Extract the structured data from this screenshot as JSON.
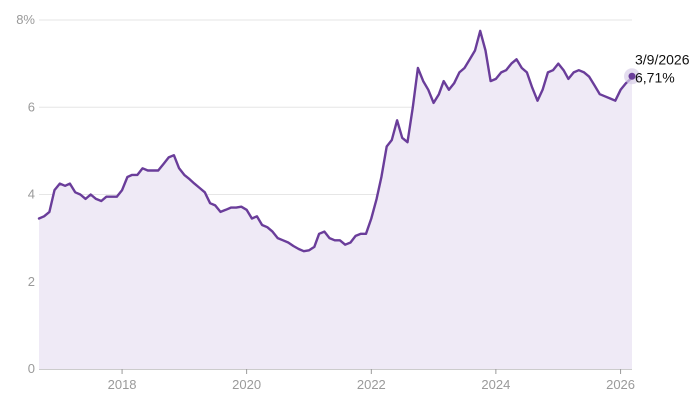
{
  "chart_data": {
    "type": "area",
    "title": "",
    "xlabel": "",
    "ylabel": "",
    "x_range": [
      "2016-09-01",
      "2026-03-09"
    ],
    "y_range": [
      0,
      8
    ],
    "y_ticks": [
      0,
      2,
      4,
      6,
      8
    ],
    "y_tick_labels": [
      "0",
      "2",
      "4",
      "6",
      "8%"
    ],
    "x_ticks": [
      2018,
      2020,
      2022,
      2024,
      2026
    ],
    "x_tick_labels": [
      "2018",
      "2020",
      "2022",
      "2024",
      "2026"
    ],
    "grid": "horizontal",
    "colors": {
      "line": "#6a3d9a",
      "fill": "#efeaf6",
      "grid": "#e6e6e6",
      "axis": "#9a9a9a",
      "halo": "#d9cfe8"
    },
    "series": [
      {
        "points": [
          [
            "2016-09-01",
            3.45
          ],
          [
            "2016-10-01",
            3.5
          ],
          [
            "2016-11-01",
            3.6
          ],
          [
            "2016-12-01",
            4.1
          ],
          [
            "2017-01-01",
            4.25
          ],
          [
            "2017-02-01",
            4.2
          ],
          [
            "2017-03-01",
            4.25
          ],
          [
            "2017-04-01",
            4.05
          ],
          [
            "2017-05-01",
            4.0
          ],
          [
            "2017-06-01",
            3.9
          ],
          [
            "2017-07-01",
            4.0
          ],
          [
            "2017-08-01",
            3.9
          ],
          [
            "2017-09-01",
            3.85
          ],
          [
            "2017-10-01",
            3.95
          ],
          [
            "2017-11-01",
            3.95
          ],
          [
            "2017-12-01",
            3.95
          ],
          [
            "2018-01-01",
            4.1
          ],
          [
            "2018-02-01",
            4.4
          ],
          [
            "2018-03-01",
            4.45
          ],
          [
            "2018-04-01",
            4.45
          ],
          [
            "2018-05-01",
            4.6
          ],
          [
            "2018-06-01",
            4.55
          ],
          [
            "2018-07-01",
            4.55
          ],
          [
            "2018-08-01",
            4.55
          ],
          [
            "2018-09-01",
            4.7
          ],
          [
            "2018-10-01",
            4.85
          ],
          [
            "2018-11-01",
            4.9
          ],
          [
            "2018-12-01",
            4.6
          ],
          [
            "2019-01-01",
            4.45
          ],
          [
            "2019-02-01",
            4.35
          ],
          [
            "2019-03-01",
            4.25
          ],
          [
            "2019-04-01",
            4.15
          ],
          [
            "2019-05-01",
            4.05
          ],
          [
            "2019-06-01",
            3.8
          ],
          [
            "2019-07-01",
            3.75
          ],
          [
            "2019-08-01",
            3.6
          ],
          [
            "2019-09-01",
            3.65
          ],
          [
            "2019-10-01",
            3.7
          ],
          [
            "2019-11-01",
            3.7
          ],
          [
            "2019-12-01",
            3.72
          ],
          [
            "2020-01-01",
            3.65
          ],
          [
            "2020-02-01",
            3.45
          ],
          [
            "2020-03-01",
            3.5
          ],
          [
            "2020-04-01",
            3.3
          ],
          [
            "2020-05-01",
            3.25
          ],
          [
            "2020-06-01",
            3.15
          ],
          [
            "2020-07-01",
            3.0
          ],
          [
            "2020-08-01",
            2.95
          ],
          [
            "2020-09-01",
            2.9
          ],
          [
            "2020-10-01",
            2.82
          ],
          [
            "2020-11-01",
            2.75
          ],
          [
            "2020-12-01",
            2.7
          ],
          [
            "2021-01-01",
            2.72
          ],
          [
            "2021-02-01",
            2.8
          ],
          [
            "2021-03-01",
            3.1
          ],
          [
            "2021-04-01",
            3.15
          ],
          [
            "2021-05-01",
            3.0
          ],
          [
            "2021-06-01",
            2.95
          ],
          [
            "2021-07-01",
            2.95
          ],
          [
            "2021-08-01",
            2.85
          ],
          [
            "2021-09-01",
            2.9
          ],
          [
            "2021-10-01",
            3.05
          ],
          [
            "2021-11-01",
            3.1
          ],
          [
            "2021-12-01",
            3.1
          ],
          [
            "2022-01-01",
            3.45
          ],
          [
            "2022-02-01",
            3.9
          ],
          [
            "2022-03-01",
            4.4
          ],
          [
            "2022-04-01",
            5.1
          ],
          [
            "2022-05-01",
            5.25
          ],
          [
            "2022-06-01",
            5.7
          ],
          [
            "2022-07-01",
            5.3
          ],
          [
            "2022-08-01",
            5.2
          ],
          [
            "2022-09-01",
            6.0
          ],
          [
            "2022-10-01",
            6.9
          ],
          [
            "2022-11-01",
            6.6
          ],
          [
            "2022-12-01",
            6.4
          ],
          [
            "2023-01-01",
            6.1
          ],
          [
            "2023-02-01",
            6.3
          ],
          [
            "2023-03-01",
            6.6
          ],
          [
            "2023-04-01",
            6.4
          ],
          [
            "2023-05-01",
            6.55
          ],
          [
            "2023-06-01",
            6.8
          ],
          [
            "2023-07-01",
            6.9
          ],
          [
            "2023-08-01",
            7.1
          ],
          [
            "2023-09-01",
            7.3
          ],
          [
            "2023-10-01",
            7.75
          ],
          [
            "2023-11-01",
            7.3
          ],
          [
            "2023-12-01",
            6.6
          ],
          [
            "2024-01-01",
            6.65
          ],
          [
            "2024-02-01",
            6.8
          ],
          [
            "2024-03-01",
            6.85
          ],
          [
            "2024-04-01",
            7.0
          ],
          [
            "2024-05-01",
            7.1
          ],
          [
            "2024-06-01",
            6.9
          ],
          [
            "2024-07-01",
            6.8
          ],
          [
            "2024-08-01",
            6.45
          ],
          [
            "2024-09-01",
            6.15
          ],
          [
            "2024-10-01",
            6.4
          ],
          [
            "2024-11-01",
            6.8
          ],
          [
            "2024-12-01",
            6.85
          ],
          [
            "2025-01-01",
            7.0
          ],
          [
            "2025-02-01",
            6.85
          ],
          [
            "2025-03-01",
            6.65
          ],
          [
            "2025-04-01",
            6.8
          ],
          [
            "2025-05-01",
            6.85
          ],
          [
            "2025-06-01",
            6.8
          ],
          [
            "2025-07-01",
            6.7
          ],
          [
            "2025-08-01",
            6.5
          ],
          [
            "2025-09-01",
            6.3
          ],
          [
            "2025-10-01",
            6.25
          ],
          [
            "2025-11-01",
            6.2
          ],
          [
            "2025-12-01",
            6.15
          ],
          [
            "2026-01-01",
            6.4
          ],
          [
            "2026-02-01",
            6.55
          ],
          [
            "2026-03-01",
            6.65
          ],
          [
            "2026-03-09",
            6.71
          ]
        ]
      }
    ],
    "annotation": {
      "date": "3/9/2026",
      "value_label": "6,71%",
      "x": "2026-03-09",
      "y": 6.71
    }
  }
}
